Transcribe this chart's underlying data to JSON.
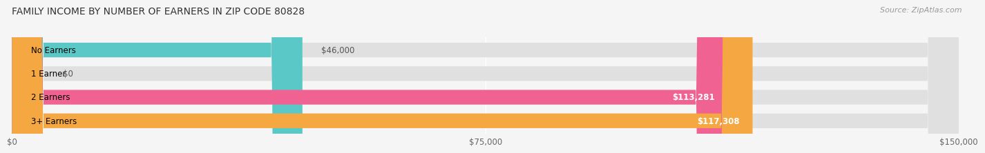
{
  "title": "FAMILY INCOME BY NUMBER OF EARNERS IN ZIP CODE 80828",
  "source": "Source: ZipAtlas.com",
  "categories": [
    "No Earners",
    "1 Earner",
    "2 Earners",
    "3+ Earners"
  ],
  "values": [
    46000,
    0,
    113281,
    117308
  ],
  "labels": [
    "$46,000",
    "$0",
    "$113,281",
    "$117,308"
  ],
  "bar_colors": [
    "#5bc8c8",
    "#b0aee0",
    "#f06292",
    "#f5a742"
  ],
  "xlim": [
    0,
    150000
  ],
  "xticks": [
    0,
    75000,
    150000
  ],
  "xticklabels": [
    "$0",
    "$75,000",
    "$150,000"
  ],
  "background_color": "#f5f5f5",
  "bar_bg_color": "#e0e0e0",
  "title_fontsize": 10,
  "source_fontsize": 8,
  "label_fontsize": 8.5,
  "category_fontsize": 8.5
}
